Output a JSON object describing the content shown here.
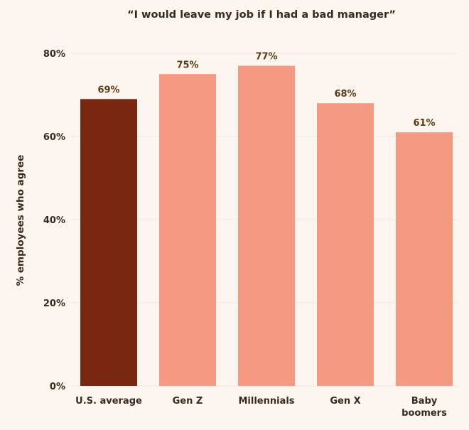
{
  "chart_data": {
    "type": "bar",
    "title": "“I would leave my job if I had a bad manager”",
    "xlabel": "",
    "ylabel": "% employees who agree",
    "categories": [
      [
        "U.S. average"
      ],
      [
        "Gen Z"
      ],
      [
        "Millennials"
      ],
      [
        "Gen X"
      ],
      [
        "Baby",
        "boomers"
      ]
    ],
    "values": [
      69,
      75,
      77,
      68,
      61
    ],
    "value_labels": [
      "69%",
      "75%",
      "77%",
      "68%",
      "61%"
    ],
    "ylim": [
      0,
      80
    ],
    "yticks": [
      0,
      20,
      40,
      60,
      80
    ],
    "ytick_labels": [
      "0%",
      "20%",
      "40%",
      "60%",
      "80%"
    ],
    "grid": true,
    "legend": "none",
    "colors": {
      "highlight": "#7a2712",
      "bar": "#f49a80",
      "background": "#fdf5f0",
      "gridline": "#f3e6de"
    },
    "highlight_index": 0
  }
}
